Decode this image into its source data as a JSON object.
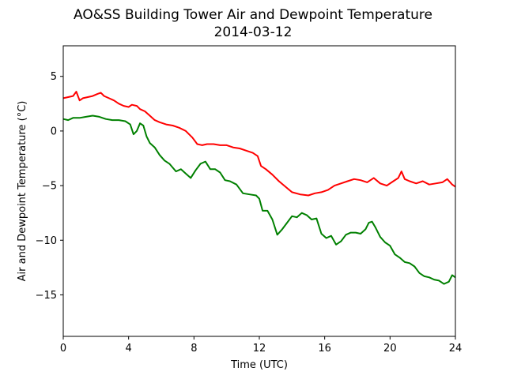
{
  "chart_data": {
    "type": "line",
    "title": "AO&SS Building Tower Air and Dewpoint Temperature",
    "subtitle": "2014-03-12",
    "xlabel": "Time (UTC)",
    "ylabel": "Air and Dewpoint Temperature (°C)",
    "xlim": [
      0,
      24
    ],
    "ylim": [
      -18.8,
      7.8
    ],
    "xticks": [
      0,
      4,
      8,
      12,
      16,
      20,
      24
    ],
    "yticks": [
      5,
      0,
      -5,
      -10,
      -15
    ],
    "grid": false,
    "legend": "none",
    "series": [
      {
        "color": "#ff0000",
        "x": [
          0,
          0.3,
          0.6,
          0.8,
          1.0,
          1.2,
          1.5,
          1.8,
          2.1,
          2.3,
          2.5,
          2.8,
          3.1,
          3.4,
          3.7,
          4.0,
          4.2,
          4.5,
          4.7,
          5.0,
          5.3,
          5.6,
          5.9,
          6.3,
          6.7,
          7.1,
          7.5,
          7.9,
          8.2,
          8.5,
          8.8,
          9.2,
          9.6,
          10.0,
          10.4,
          10.8,
          11.2,
          11.6,
          11.9,
          12.1,
          12.4,
          12.8,
          13.2,
          13.6,
          14.0,
          14.5,
          15.0,
          15.4,
          15.8,
          16.2,
          16.6,
          17.0,
          17.4,
          17.8,
          18.2,
          18.6,
          19.0,
          19.4,
          19.8,
          20.2,
          20.5,
          20.7,
          20.9,
          21.2,
          21.6,
          22.0,
          22.4,
          22.8,
          23.2,
          23.5,
          23.8,
          24.0
        ],
        "values": [
          3.0,
          3.1,
          3.2,
          3.6,
          2.8,
          3.0,
          3.1,
          3.2,
          3.4,
          3.5,
          3.2,
          3.0,
          2.8,
          2.5,
          2.3,
          2.2,
          2.4,
          2.3,
          2.0,
          1.8,
          1.4,
          1.0,
          0.8,
          0.6,
          0.5,
          0.3,
          0.0,
          -0.6,
          -1.2,
          -1.3,
          -1.2,
          -1.2,
          -1.3,
          -1.3,
          -1.5,
          -1.6,
          -1.8,
          -2.0,
          -2.3,
          -3.2,
          -3.5,
          -4.0,
          -4.6,
          -5.1,
          -5.6,
          -5.8,
          -5.9,
          -5.7,
          -5.6,
          -5.4,
          -5.0,
          -4.8,
          -4.6,
          -4.4,
          -4.5,
          -4.7,
          -4.3,
          -4.8,
          -5.0,
          -4.6,
          -4.3,
          -3.7,
          -4.4,
          -4.6,
          -4.8,
          -4.6,
          -4.9,
          -4.8,
          -4.7,
          -4.4,
          -4.9,
          -5.1
        ]
      },
      {
        "color": "#008000",
        "x": [
          0,
          0.3,
          0.6,
          1.0,
          1.4,
          1.8,
          2.2,
          2.6,
          3.0,
          3.4,
          3.8,
          4.1,
          4.3,
          4.5,
          4.7,
          4.9,
          5.1,
          5.3,
          5.6,
          5.9,
          6.2,
          6.5,
          6.9,
          7.2,
          7.5,
          7.8,
          8.1,
          8.4,
          8.7,
          9.0,
          9.3,
          9.6,
          9.9,
          10.2,
          10.6,
          11.0,
          11.4,
          11.8,
          12.0,
          12.2,
          12.5,
          12.8,
          13.1,
          13.4,
          13.7,
          14.0,
          14.3,
          14.6,
          14.9,
          15.2,
          15.5,
          15.8,
          16.1,
          16.4,
          16.7,
          17.0,
          17.3,
          17.6,
          17.9,
          18.2,
          18.5,
          18.7,
          18.9,
          19.1,
          19.4,
          19.7,
          20.0,
          20.3,
          20.6,
          20.9,
          21.2,
          21.5,
          21.8,
          22.1,
          22.4,
          22.7,
          23.0,
          23.3,
          23.6,
          23.8,
          24.0
        ],
        "values": [
          1.1,
          1.0,
          1.2,
          1.2,
          1.3,
          1.4,
          1.3,
          1.1,
          1.0,
          1.0,
          0.9,
          0.6,
          -0.3,
          0.0,
          0.7,
          0.5,
          -0.5,
          -1.1,
          -1.5,
          -2.2,
          -2.7,
          -3.0,
          -3.7,
          -3.5,
          -3.9,
          -4.3,
          -3.6,
          -3.0,
          -2.8,
          -3.5,
          -3.5,
          -3.8,
          -4.5,
          -4.6,
          -4.9,
          -5.7,
          -5.8,
          -5.9,
          -6.2,
          -7.3,
          -7.3,
          -8.1,
          -9.5,
          -9.0,
          -8.4,
          -7.8,
          -7.9,
          -7.5,
          -7.7,
          -8.1,
          -8.0,
          -9.4,
          -9.8,
          -9.6,
          -10.4,
          -10.1,
          -9.5,
          -9.3,
          -9.3,
          -9.4,
          -9.0,
          -8.4,
          -8.3,
          -8.8,
          -9.7,
          -10.2,
          -10.5,
          -11.3,
          -11.6,
          -12.0,
          -12.1,
          -12.4,
          -13.0,
          -13.3,
          -13.4,
          -13.6,
          -13.7,
          -14.0,
          -13.8,
          -13.2,
          -13.4
        ]
      }
    ]
  }
}
